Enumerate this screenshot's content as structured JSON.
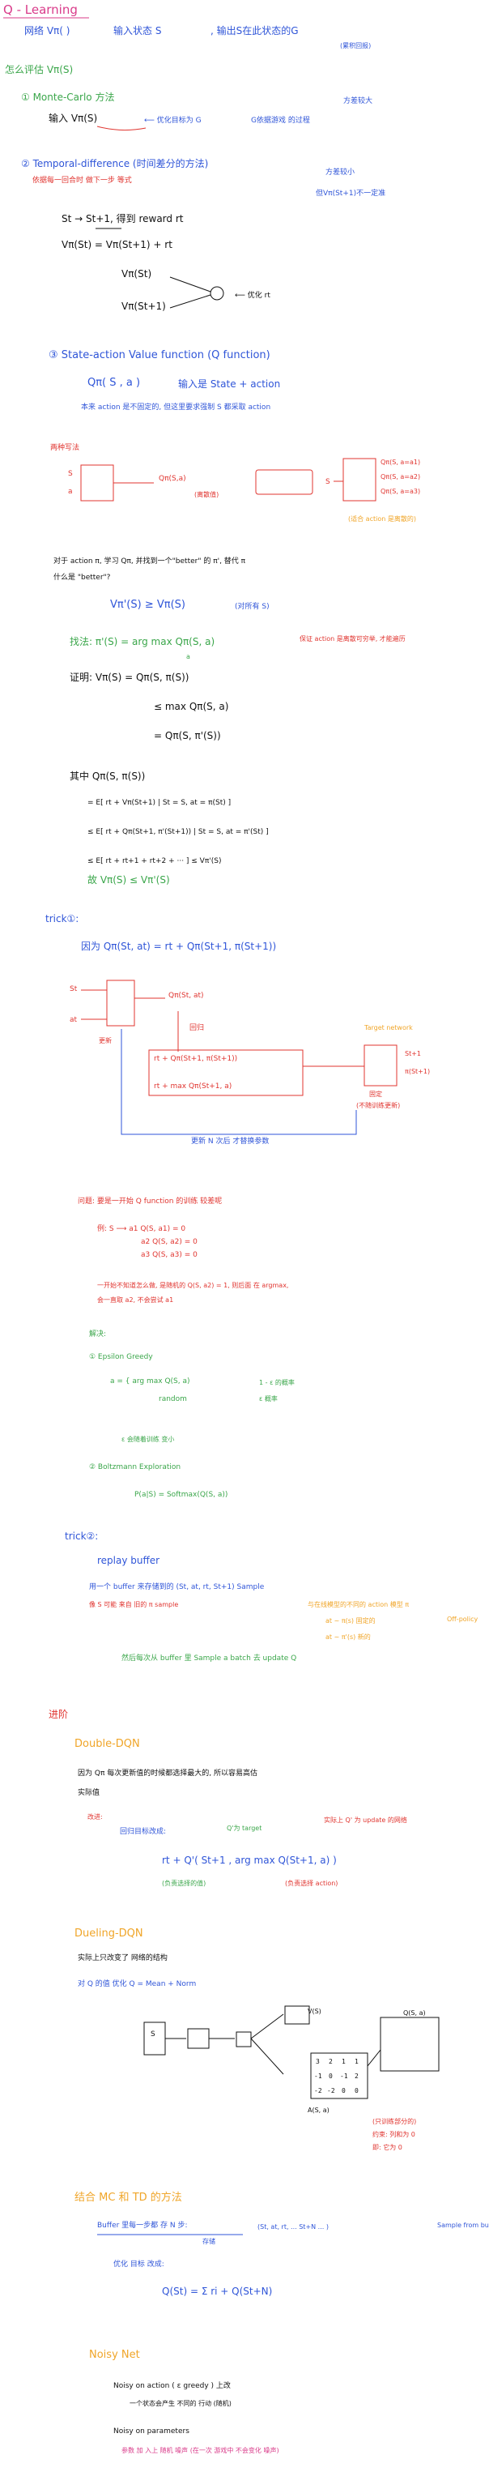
{
  "s1": {
    "title": "Q - Learning",
    "l1": "网络 Vπ( )",
    "l1b": "输入状态 S",
    "l1c": ", 输出S在此状态的G",
    "l1d": "(累积回报)",
    "how": "怎么评估 Vπ(S)",
    "mc": "① Monte-Carlo 方法",
    "mc2": "输入 Vπ(S)",
    "mc3": "⟵ 优化目标为 G",
    "mc4": "G依据游戏 的过程",
    "mc5": "方差较大",
    "td": "② Temporal-difference (时间差分的方法)",
    "td2": "依据每一回合时 做下一步 等式",
    "td3": "方差较小",
    "td4": "但Vπ(St+1)不一定准",
    "td5": "St  →  St+1, 得到 reward rt",
    "td6": "Vπ(St) = Vπ(St+1) + rt",
    "td7": "Vπ(St)",
    "td8": "Vπ(St+1)",
    "td9": "⟵ 优化 rt"
  },
  "s2": {
    "title": "③ State-action Value function (Q function)",
    "q1": "Qπ( S , a )",
    "q2": "输入是 State + action",
    "q3": "本来 action 是不固定的, 但这里要求强制 S 都采取 action",
    "q4": "两种写法",
    "q5": "S",
    "q6": "a",
    "q7": "Qπ(S,a)",
    "q8": "(离散值)",
    "q9": "S",
    "q10": "Qπ(S, a=a1)",
    "q11": "Qπ(S, a=a2)",
    "q12": "Qπ(S, a=a3)",
    "q13": "(适合 action 是离散的)",
    "p1": "对于 action π, 学习 Qπ, 并找到一个\"better\" 的 π', 替代 π",
    "p2": "什么是 \"better\"?",
    "p3": "Vπ'(S) ≥ Vπ(S)",
    "p4": "(对所有 S)",
    "p5": "找法: π'(S) = arg max Qπ(S, a)",
    "p5b": "a",
    "p6": "保证 action 是离散可穷举, 才能遍历",
    "p7": "证明: Vπ(S) = Qπ(S, π(S))",
    "p8": "≤ max Qπ(S, a)",
    "p9": "= Qπ(S, π'(S))",
    "p10": "其中 Qπ(S, π(S))",
    "p11": "= E[ rt + Vπ(St+1) | St = S, at = π(St) ]",
    "p12": "≤ E[ rt + Qπ(St+1, π'(St+1)) | St = S, at = π'(St) ]",
    "p13": "≤ E[ rt + rt+1 + rt+2 + ··· ] ≤ Vπ'(S)",
    "p14": "故 Vπ(S) ≤ Vπ'(S)"
  },
  "s3": {
    "title": "trick①:",
    "t1": "因为 Qπ(St, at) = rt + Qπ(St+1, π(St+1))",
    "t2": "St",
    "t3": "at",
    "t4": "Qπ(St, at)",
    "t5": "回归",
    "t6": "rt + Qπ(St+1, π(St+1))",
    "t7": "rt + max Qπ(St+1, a)",
    "t8": "Target network",
    "t9": "St+1",
    "t10": "π(St+1)",
    "t11": "固定",
    "t12": "(不随训练更新)",
    "t13": "更新 N 次后 才替换参数",
    "t14": "更新"
  },
  "s4": {
    "title": "问题: 要是一开始 Q function 的训练 较差呢",
    "e1": "例: S ⟶ a1  Q(S, a1) = 0",
    "e2": "a2  Q(S, a2) = 0",
    "e3": "a3  Q(S, a3) = 0",
    "e4": "一开始不知道怎么做, 是随机的 Q(S, a2) = 1, 则后面 在 argmax,",
    "e5": "会一直取 a2, 不会尝试 a1",
    "e6": "解决:",
    "e7": "① Epsilon Greedy",
    "e8": "a = { arg max Q(S, a)",
    "e9": "random",
    "e10": "1 - ε 的概率",
    "e11": "ε 概率",
    "e12": "ε 会随着训练 变小",
    "e13": "② Boltzmann Exploration",
    "e14": "P(a|S) = Softmax(Q(S, a))"
  },
  "s5": {
    "title": "trick②:",
    "r1": "replay buffer",
    "r2": "用一个 buffer 来存储到的 (St, at, rt, St+1) Sample",
    "r3": "像 S 可能 来自 旧的 π sample",
    "r4": "与在线模型的不同的 action 模型 π",
    "r5": "Off-policy",
    "r6": "at ~ π(s) 固定的",
    "r7": "at ~ π'(s) 新的",
    "r8": "然后每次从 buffer 里 Sample a batch 去 update Q"
  },
  "s6": {
    "title": "进阶",
    "d1": "Double-DQN",
    "d2": "因为 Qπ 每次更新值的时候都选择最大的, 所以容易高估",
    "d3": "实际值",
    "d4": "改进:",
    "d5": "回归目标改成:",
    "d6": "Q'为 target",
    "d7": "实际上 Q' 为 update 的网络",
    "d8": "rt + Q'( St+1 , arg max Q(St+1, a) )",
    "d9": "(负责选择的值)",
    "d10": "(负责选择 action)"
  },
  "s7": {
    "title": "Dueling-DQN",
    "u1": "实际上只改变了 网络的结构",
    "u2": "对 Q 的值 优化 Q = Mean + Norm",
    "u3": "S",
    "u4": "V(S)",
    "u5": "A(S, a)",
    "u6": "Q(S, a)",
    "u7": "(只训练部分的)",
    "u8": "约束: 列和为 0",
    "u9": "即: 它为 0",
    "grid": [
      [
        "3",
        "2",
        "1",
        "1"
      ],
      [
        "-1",
        "0",
        "-1",
        "2"
      ],
      [
        "-2",
        "-2",
        "0",
        "0"
      ]
    ]
  },
  "s8": {
    "title": "结合 MC 和 TD 的方法",
    "m1": "Buffer 里每一步都 存 N 步:",
    "m2": "(St, at, rt, ... St+N ... )",
    "m3": "Sample from buffer",
    "m4": "存储",
    "m5": "优化 目标 改成:",
    "m6": "Q(St) = Σ ri + Q(St+N)"
  },
  "s9": {
    "title": "Noisy Net",
    "n1": "Noisy on action ( ε greedy ) 上改",
    "n2": "一个状态会产生 不同的 行动 (随机)",
    "n3": "Noisy on parameters",
    "n4": "参数 加 入上 随机 噪声  (在一次 游戏中 不会变化 噪声)"
  },
  "colors": {
    "blue": "#2f55d8",
    "green": "#3aa64a",
    "red": "#e0342f",
    "orange": "#f0a528",
    "black": "#111111"
  }
}
